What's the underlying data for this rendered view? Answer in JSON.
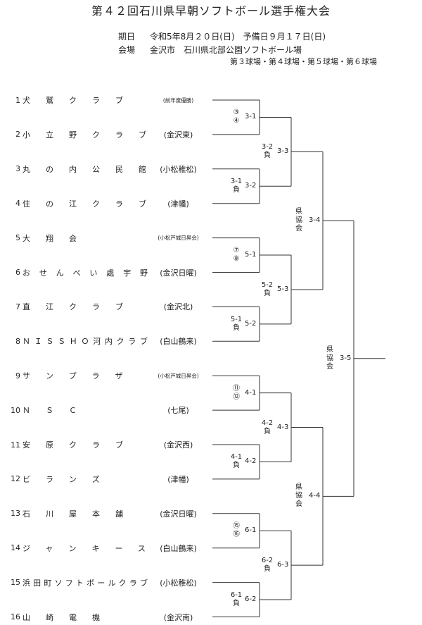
{
  "title": "第４２回石川県早朝ソフトボール選手権大会",
  "info": {
    "date_label": "期日",
    "date_value": "令和5年8月２０日(日)　予備日９月１７日(日)",
    "venue_label": "会場",
    "venue_value": "金沢市　石川県北部公園ソフトボール場",
    "fields": "第３球場・第４球場・第５球場・第６球場"
  },
  "teams": [
    {
      "no": "1",
      "name": "犬鷲クラブ",
      "affiliation": "(前年度優勝)"
    },
    {
      "no": "2",
      "name": "小立野クラブ",
      "affiliation": "(金沢東)"
    },
    {
      "no": "3",
      "name": "丸の内公民館",
      "affiliation": "(小松稚松)"
    },
    {
      "no": "4",
      "name": "住の江クラブ",
      "affiliation": "(津幡)"
    },
    {
      "no": "5",
      "name": "大翔会",
      "affiliation": "(小松芦城日昇会)"
    },
    {
      "no": "6",
      "name": "おせんべい處宇野",
      "affiliation": "(金沢日曜)"
    },
    {
      "no": "7",
      "name": "直江クラブ",
      "affiliation": "(金沢北)"
    },
    {
      "no": "8",
      "name": "ＮＩＳＳＨＯ河内クラブ",
      "affiliation": "(白山鶴来)"
    },
    {
      "no": "9",
      "name": "サンプラザ",
      "affiliation": "(小松芦城日昇会)"
    },
    {
      "no": "10",
      "name": "ＮＳＣ",
      "affiliation": "(七尾)"
    },
    {
      "no": "11",
      "name": "安原クラブ",
      "affiliation": "(金沢西)"
    },
    {
      "no": "12",
      "name": "ビランズ",
      "affiliation": "(津幡)"
    },
    {
      "no": "13",
      "name": "石川屋本舗",
      "affiliation": "(金沢日曜)"
    },
    {
      "no": "14",
      "name": "ジャンキース",
      "affiliation": "(白山鶴来)"
    },
    {
      "no": "15",
      "name": "浜田町ソフトボールクラブ",
      "affiliation": "(小松稚松)"
    },
    {
      "no": "16",
      "name": "山崎電機",
      "affiliation": "(金沢南)"
    }
  ],
  "round1": [
    {
      "match": "3-1",
      "note": "③\n④"
    },
    {
      "match": "3-2",
      "note": "3-1\n負"
    },
    {
      "match": "5-1",
      "note": "⑦\n⑧"
    },
    {
      "match": "5-2",
      "note": "5-1\n負"
    },
    {
      "match": "4-1",
      "note": "⑪\n⑫"
    },
    {
      "match": "4-2",
      "note": "4-1\n負"
    },
    {
      "match": "6-1",
      "note": "⑮\n⑯"
    },
    {
      "match": "6-2",
      "note": "6-1\n負"
    }
  ],
  "round2": [
    {
      "match": "3-3",
      "note": "3-2\n負"
    },
    {
      "match": "5-3",
      "note": "5-2\n負"
    },
    {
      "match": "4-3",
      "note": "4-2\n負"
    },
    {
      "match": "6-3",
      "note": "6-2\n負"
    }
  ],
  "round3": [
    {
      "match": "3-4",
      "note": "県\n協\n会"
    },
    {
      "match": "4-4",
      "note": "県\n協\n会"
    }
  ],
  "final": {
    "match": "3-5",
    "note": "県\n協\n会"
  },
  "line_color": "#333333"
}
